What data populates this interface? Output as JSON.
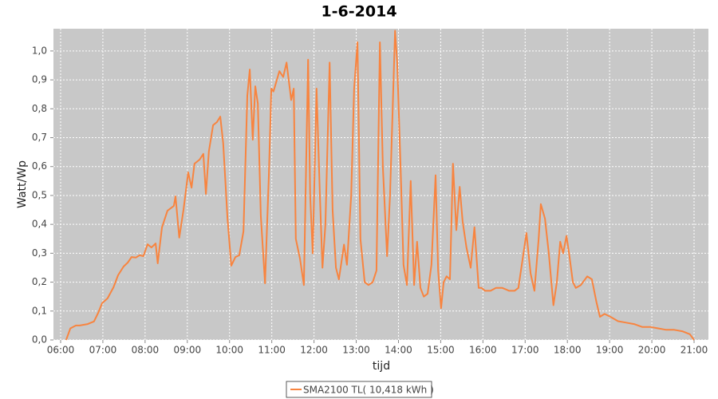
{
  "chart_data": {
    "type": "line",
    "title": "1-6-2014",
    "x_label": "tijd",
    "y_label": "Watt/Wp",
    "xlim": [
      5.83,
      21.34
    ],
    "ylim": [
      0,
      1.077
    ],
    "grid": true,
    "legend": "bottom",
    "xticks": [
      {
        "value": 6,
        "label": "06:00"
      },
      {
        "value": 7,
        "label": "07:00"
      },
      {
        "value": 8,
        "label": "08:00"
      },
      {
        "value": 9,
        "label": "09:00"
      },
      {
        "value": 10,
        "label": "10:00"
      },
      {
        "value": 11,
        "label": "11:00"
      },
      {
        "value": 12,
        "label": "12:00"
      },
      {
        "value": 13,
        "label": "13:00"
      },
      {
        "value": 14,
        "label": "14:00"
      },
      {
        "value": 15,
        "label": "15:00"
      },
      {
        "value": 16,
        "label": "16:00"
      },
      {
        "value": 17,
        "label": "17:00"
      },
      {
        "value": 18,
        "label": "18:00"
      },
      {
        "value": 19,
        "label": "19:00"
      },
      {
        "value": 20,
        "label": "20:00"
      },
      {
        "value": 21,
        "label": "21:00"
      }
    ],
    "yticks": [
      {
        "value": 0,
        "label": "0,0"
      },
      {
        "value": 0.1,
        "label": "0,1"
      },
      {
        "value": 0.2,
        "label": "0,2"
      },
      {
        "value": 0.3,
        "label": "0,3"
      },
      {
        "value": 0.4,
        "label": "0,4"
      },
      {
        "value": 0.5,
        "label": "0,5"
      },
      {
        "value": 0.6,
        "label": "0,6"
      },
      {
        "value": 0.7,
        "label": "0,7"
      },
      {
        "value": 0.8,
        "label": "0,8"
      },
      {
        "value": 0.9,
        "label": "0,9"
      },
      {
        "value": 1.0,
        "label": "1,0"
      }
    ],
    "x": [
      6.13,
      6.23,
      6.36,
      6.45,
      6.64,
      6.79,
      6.89,
      6.98,
      7.11,
      7.25,
      7.36,
      7.49,
      7.59,
      7.68,
      7.78,
      7.87,
      7.96,
      8.06,
      8.15,
      8.25,
      8.3,
      8.4,
      8.53,
      8.68,
      8.72,
      8.81,
      8.91,
      9.02,
      9.1,
      9.17,
      9.29,
      9.38,
      9.44,
      9.51,
      9.61,
      9.7,
      9.78,
      9.85,
      9.95,
      10.04,
      10.14,
      10.23,
      10.33,
      10.42,
      10.48,
      10.55,
      10.61,
      10.67,
      10.74,
      10.84,
      10.93,
      10.99,
      11.04,
      11.1,
      11.18,
      11.27,
      11.35,
      11.46,
      11.52,
      11.57,
      11.67,
      11.76,
      11.86,
      11.91,
      11.97,
      12.06,
      12.14,
      12.2,
      12.27,
      12.37,
      12.44,
      12.52,
      12.59,
      12.71,
      12.78,
      12.88,
      12.95,
      13.03,
      13.1,
      13.2,
      13.29,
      13.39,
      13.48,
      13.56,
      13.63,
      13.73,
      13.8,
      13.92,
      13.97,
      14.05,
      14.12,
      14.2,
      14.29,
      14.37,
      14.44,
      14.52,
      14.6,
      14.69,
      14.78,
      14.88,
      14.94,
      15.01,
      15.07,
      15.14,
      15.22,
      15.29,
      15.37,
      15.45,
      15.52,
      15.61,
      15.71,
      15.8,
      15.9,
      15.97,
      16.05,
      16.18,
      16.31,
      16.46,
      16.62,
      16.75,
      16.84,
      16.94,
      17.03,
      17.13,
      17.22,
      17.32,
      17.37,
      17.47,
      17.56,
      17.67,
      17.75,
      17.83,
      17.9,
      17.98,
      18.05,
      18.13,
      18.2,
      18.32,
      18.47,
      18.58,
      18.69,
      18.77,
      18.88,
      19.02,
      19.2,
      19.39,
      19.58,
      19.77,
      19.96,
      20.15,
      20.34,
      20.53,
      20.72,
      20.9,
      21.0
    ],
    "series": [
      {
        "name": "SMA2100 TL( 10,418 kWh )",
        "color": "#f8843f",
        "values": [
          0,
          0.04,
          0.05,
          0.05,
          0.055,
          0.064,
          0.094,
          0.127,
          0.144,
          0.182,
          0.224,
          0.254,
          0.268,
          0.287,
          0.285,
          0.293,
          0.29,
          0.331,
          0.32,
          0.334,
          0.265,
          0.389,
          0.447,
          0.464,
          0.497,
          0.354,
          0.45,
          0.58,
          0.527,
          0.61,
          0.624,
          0.644,
          0.505,
          0.652,
          0.743,
          0.754,
          0.773,
          0.68,
          0.423,
          0.257,
          0.287,
          0.293,
          0.376,
          0.845,
          0.936,
          0.693,
          0.878,
          0.818,
          0.431,
          0.196,
          0.569,
          0.87,
          0.86,
          0.89,
          0.93,
          0.91,
          0.96,
          0.83,
          0.87,
          0.35,
          0.28,
          0.19,
          0.97,
          0.5,
          0.3,
          0.87,
          0.5,
          0.25,
          0.4,
          0.96,
          0.45,
          0.25,
          0.21,
          0.33,
          0.26,
          0.5,
          0.87,
          1.03,
          0.35,
          0.2,
          0.19,
          0.2,
          0.24,
          1.03,
          0.6,
          0.29,
          0.5,
          1.07,
          0.96,
          0.6,
          0.26,
          0.19,
          0.55,
          0.19,
          0.34,
          0.18,
          0.15,
          0.16,
          0.26,
          0.57,
          0.24,
          0.11,
          0.2,
          0.22,
          0.21,
          0.61,
          0.38,
          0.53,
          0.41,
          0.32,
          0.25,
          0.39,
          0.18,
          0.18,
          0.17,
          0.17,
          0.18,
          0.18,
          0.17,
          0.17,
          0.18,
          0.28,
          0.37,
          0.23,
          0.17,
          0.35,
          0.47,
          0.42,
          0.3,
          0.12,
          0.2,
          0.34,
          0.3,
          0.36,
          0.29,
          0.2,
          0.18,
          0.19,
          0.22,
          0.21,
          0.13,
          0.08,
          0.09,
          0.08,
          0.065,
          0.06,
          0.055,
          0.045,
          0.045,
          0.04,
          0.035,
          0.035,
          0.03,
          0.02,
          0
        ]
      }
    ]
  }
}
